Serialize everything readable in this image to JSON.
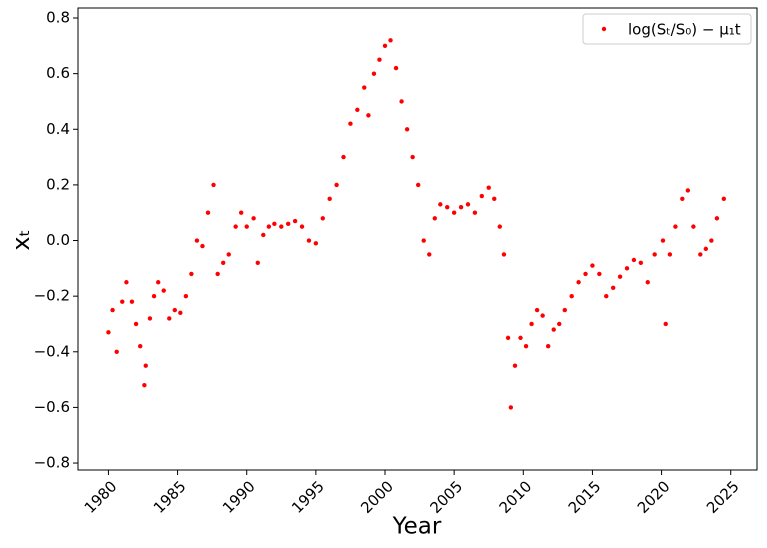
{
  "chart_data": {
    "type": "scatter",
    "xlabel": "Year",
    "ylabel": "xₜ",
    "series": [
      {
        "name": "log(Sₜ/S₀) − μ₁t",
        "color": "#ff0000",
        "x": [
          1980.0,
          1980.3,
          1980.6,
          1981.0,
          1981.3,
          1981.7,
          1982.0,
          1982.3,
          1982.6,
          1982.7,
          1983.0,
          1983.3,
          1983.6,
          1984.0,
          1984.4,
          1984.8,
          1985.2,
          1985.6,
          1986.0,
          1986.4,
          1986.8,
          1987.2,
          1987.6,
          1987.9,
          1988.3,
          1988.7,
          1989.2,
          1989.6,
          1990.0,
          1990.5,
          1990.8,
          1991.2,
          1991.6,
          1992.0,
          1992.5,
          1993.0,
          1993.5,
          1994.0,
          1994.5,
          1995.0,
          1995.5,
          1996.0,
          1996.5,
          1997.0,
          1997.5,
          1998.0,
          1998.5,
          1998.8,
          1999.2,
          1999.6,
          2000.0,
          2000.4,
          2000.8,
          2001.2,
          2001.6,
          2002.0,
          2002.4,
          2002.8,
          2003.2,
          2003.6,
          2004.0,
          2004.5,
          2005.0,
          2005.5,
          2006.0,
          2006.5,
          2007.0,
          2007.5,
          2007.9,
          2008.3,
          2008.6,
          2008.9,
          2009.1,
          2009.4,
          2009.8,
          2010.2,
          2010.6,
          2011.0,
          2011.4,
          2011.8,
          2012.2,
          2012.6,
          2013.0,
          2013.5,
          2014.0,
          2014.5,
          2015.0,
          2015.5,
          2016.0,
          2016.5,
          2017.0,
          2017.5,
          2018.0,
          2018.5,
          2019.0,
          2019.5,
          2020.1,
          2020.3,
          2020.6,
          2021.0,
          2021.5,
          2021.9,
          2022.3,
          2022.8,
          2023.2,
          2023.6,
          2024.0,
          2024.5
        ],
        "values": [
          -0.33,
          -0.25,
          -0.4,
          -0.22,
          -0.15,
          -0.22,
          -0.3,
          -0.38,
          -0.52,
          -0.45,
          -0.28,
          -0.2,
          -0.15,
          -0.18,
          -0.28,
          -0.25,
          -0.26,
          -0.2,
          -0.12,
          0.0,
          -0.02,
          0.1,
          0.2,
          -0.12,
          -0.08,
          -0.05,
          0.05,
          0.1,
          0.05,
          0.08,
          -0.08,
          0.02,
          0.05,
          0.06,
          0.05,
          0.06,
          0.07,
          0.05,
          0.0,
          -0.01,
          0.08,
          0.15,
          0.2,
          0.3,
          0.42,
          0.47,
          0.55,
          0.45,
          0.6,
          0.65,
          0.7,
          0.72,
          0.62,
          0.5,
          0.4,
          0.3,
          0.2,
          0.0,
          -0.05,
          0.08,
          0.13,
          0.12,
          0.1,
          0.12,
          0.13,
          0.1,
          0.16,
          0.19,
          0.15,
          0.05,
          -0.05,
          -0.35,
          -0.6,
          -0.45,
          -0.35,
          -0.38,
          -0.3,
          -0.25,
          -0.27,
          -0.38,
          -0.32,
          -0.3,
          -0.25,
          -0.2,
          -0.15,
          -0.12,
          -0.09,
          -0.12,
          -0.2,
          -0.17,
          -0.13,
          -0.1,
          -0.07,
          -0.08,
          -0.15,
          -0.05,
          0.0,
          -0.3,
          -0.05,
          0.05,
          0.15,
          0.18,
          0.05,
          -0.05,
          -0.03,
          0.0,
          0.08,
          0.15
        ]
      }
    ],
    "xlim": [
      1977.8,
      2026.9
    ],
    "ylim": [
      -0.825,
      0.836
    ],
    "xticks": [
      1980,
      1985,
      1990,
      1995,
      2000,
      2005,
      2010,
      2015,
      2020,
      2025
    ],
    "yticks": [
      {
        "value": -0.8,
        "label": "−0.8"
      },
      {
        "value": -0.6,
        "label": "−0.6"
      },
      {
        "value": -0.4,
        "label": "−0.4"
      },
      {
        "value": -0.2,
        "label": "−0.2"
      },
      {
        "value": 0.0,
        "label": "0.0"
      },
      0.2,
      0.4,
      0.6,
      0.8
    ],
    "legend": "upper right",
    "grid": false
  }
}
